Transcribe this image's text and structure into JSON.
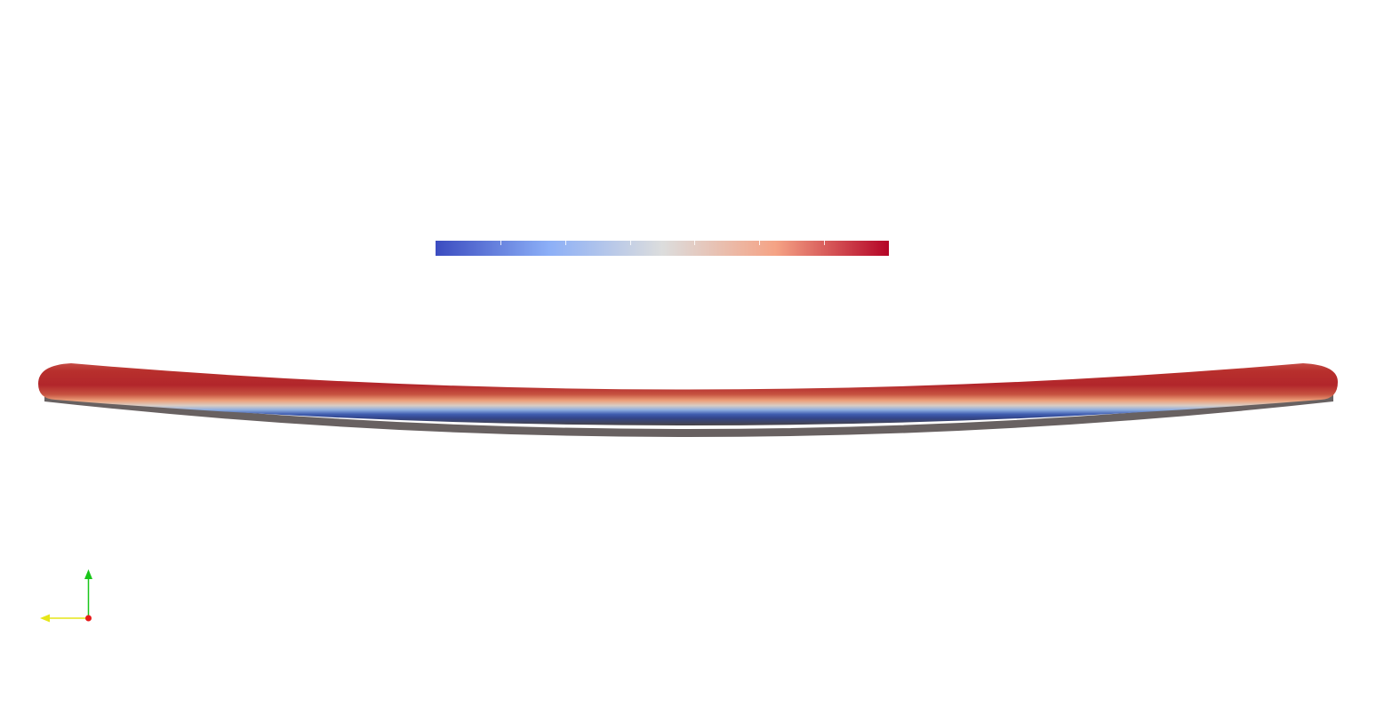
{
  "view": {
    "background": "#ffffff"
  },
  "colormap": {
    "name": "Cool to Warm",
    "stops": [
      "#3b4cc0",
      "#8caff7",
      "#dcdddd",
      "#f5a385",
      "#b40426"
    ],
    "tick_count": 5,
    "orientation": "horizontal"
  },
  "deformed_body": {
    "shape": "thin beam, sagging at center",
    "top_color": "#b2262b",
    "bottom_color": "#3a55a3",
    "shadow_color": "#585050"
  },
  "orientation_axes": {
    "icon": "orientation-axes-icon",
    "x_axis_color": "#e6e619",
    "y_axis_color": "#19c619",
    "z_axis_color": "#e61919"
  }
}
